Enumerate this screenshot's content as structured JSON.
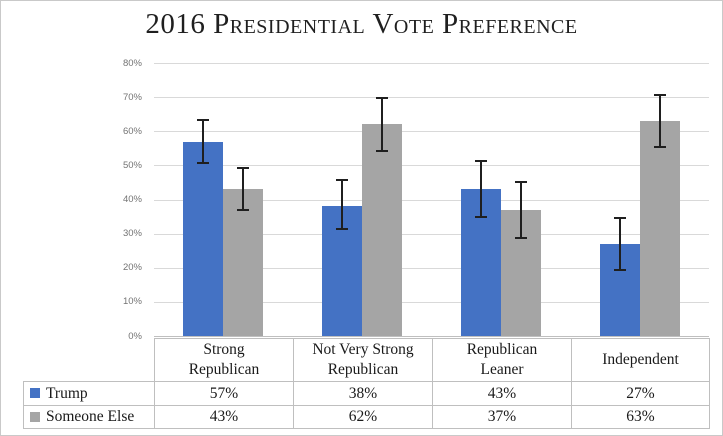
{
  "title": "2016 Presidential Vote Preference",
  "colors": {
    "trump_blue": "#4472C4",
    "someone_else_gray": "#A5A5A5",
    "gridline": "#D9D9D9",
    "axis_line": "#BFBFBF",
    "table_border": "#BFBFBF",
    "error_bar": "#1F1F1F",
    "axis_label_text": "#737373",
    "title_text": "#1F1F1F"
  },
  "chart_data": {
    "type": "bar",
    "title": "2016 Presidential Vote Preference",
    "categories": [
      "Strong Republican",
      "Not Very Strong Republican",
      "Republican Leaner",
      "Independent"
    ],
    "series": [
      {
        "name": "Trump",
        "color": "#4472C4",
        "values": [
          57,
          38,
          43,
          27
        ],
        "labels": [
          "57%",
          "38%",
          "43%",
          "27%"
        ],
        "error_low": [
          50.5,
          31,
          34.5,
          19
        ],
        "error_high": [
          63.5,
          46,
          51.5,
          35
        ]
      },
      {
        "name": "Someone Else",
        "color": "#A5A5A5",
        "values": [
          43,
          62,
          37,
          63
        ],
        "labels": [
          "43%",
          "62%",
          "37%",
          "63%"
        ],
        "error_low": [
          36.5,
          54,
          28.5,
          55
        ],
        "error_high": [
          49.5,
          70,
          45.5,
          71
        ]
      }
    ],
    "xlabel": "",
    "ylabel": "",
    "ylim": [
      0,
      80
    ],
    "y_tick_step": 10,
    "grid": true,
    "error_bars": true,
    "legend_position": "data-table-left"
  },
  "y_axis": {
    "tick_labels": [
      "0%",
      "10%",
      "20%",
      "30%",
      "40%",
      "50%",
      "60%",
      "70%",
      "80%"
    ]
  },
  "data_table": {
    "columns_display": [
      "Strong\nRepublican",
      "Not Very Strong\nRepublican",
      "Republican\nLeaner",
      "Independent"
    ],
    "row_labels": [
      "Trump",
      "Someone Else"
    ],
    "rows": [
      [
        "57%",
        "38%",
        "43%",
        "27%"
      ],
      [
        "43%",
        "62%",
        "37%",
        "63%"
      ]
    ]
  }
}
